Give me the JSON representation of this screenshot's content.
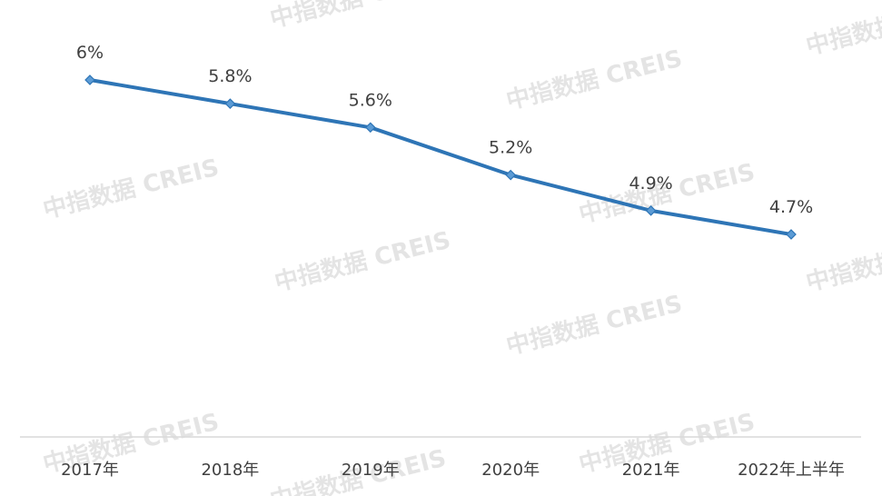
{
  "chart_data": {
    "type": "line",
    "categories": [
      "2017年",
      "2018年",
      "2019年",
      "2020年",
      "2021年",
      "2022年上半年"
    ],
    "values": [
      6,
      5.8,
      5.6,
      5.2,
      4.9,
      4.7
    ],
    "data_labels": [
      "6%",
      "5.8%",
      "5.6%",
      "5.2%",
      "4.9%",
      "4.7%"
    ],
    "title": "",
    "xlabel": "",
    "ylabel": "",
    "y_axis_visible": false,
    "grid": false,
    "legend": "none",
    "line_color": "#2E75B6",
    "marker": "diamond"
  },
  "watermark": {
    "text": "中指数据 CREIS",
    "color": "#cfcfcf"
  }
}
